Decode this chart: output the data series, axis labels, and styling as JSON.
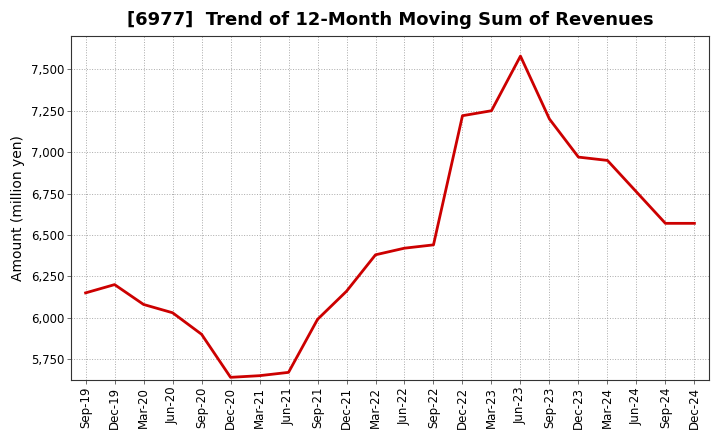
{
  "title": "[6977]  Trend of 12-Month Moving Sum of Revenues",
  "ylabel": "Amount (million yen)",
  "line_color": "#cc0000",
  "background_color": "#ffffff",
  "plot_bg_color": "#ffffff",
  "grid_color": "#aaaaaa",
  "labels": [
    "Sep-19",
    "Dec-19",
    "Mar-20",
    "Jun-20",
    "Sep-20",
    "Dec-20",
    "Mar-21",
    "Jun-21",
    "Sep-21",
    "Dec-21",
    "Mar-22",
    "Jun-22",
    "Sep-22",
    "Dec-22",
    "Mar-23",
    "Jun-23",
    "Sep-23",
    "Dec-23",
    "Mar-24",
    "Jun-24",
    "Sep-24",
    "Dec-24"
  ],
  "values": [
    6150,
    6200,
    6080,
    6030,
    5900,
    5640,
    5650,
    5670,
    5990,
    6160,
    6380,
    6420,
    6440,
    7220,
    7250,
    7580,
    7200,
    6970,
    6950,
    6760,
    6570,
    6570
  ],
  "ylim_low": 5625,
  "ylim_high": 7700,
  "yticks": [
    5750,
    6000,
    6250,
    6500,
    6750,
    7000,
    7250,
    7500
  ],
  "title_fontsize": 13,
  "ylabel_fontsize": 10,
  "tick_fontsize": 8.5,
  "line_width": 2.0
}
